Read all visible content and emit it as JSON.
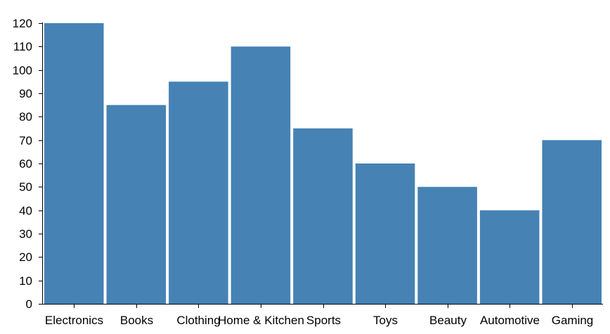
{
  "chart_data": {
    "type": "bar",
    "categories": [
      "Electronics",
      "Books",
      "Clothing",
      "Home & Kitchen",
      "Sports",
      "Toys",
      "Beauty",
      "Automotive",
      "Gaming"
    ],
    "values": [
      120,
      85,
      95,
      110,
      75,
      60,
      50,
      40,
      70
    ],
    "title": "",
    "xlabel": "",
    "ylabel": "",
    "ylim": [
      0,
      120
    ],
    "yticks": [
      0,
      10,
      20,
      30,
      40,
      50,
      60,
      70,
      80,
      90,
      100,
      110,
      120
    ],
    "grid": false,
    "legend": "none",
    "bar_color": "#4682b4"
  }
}
